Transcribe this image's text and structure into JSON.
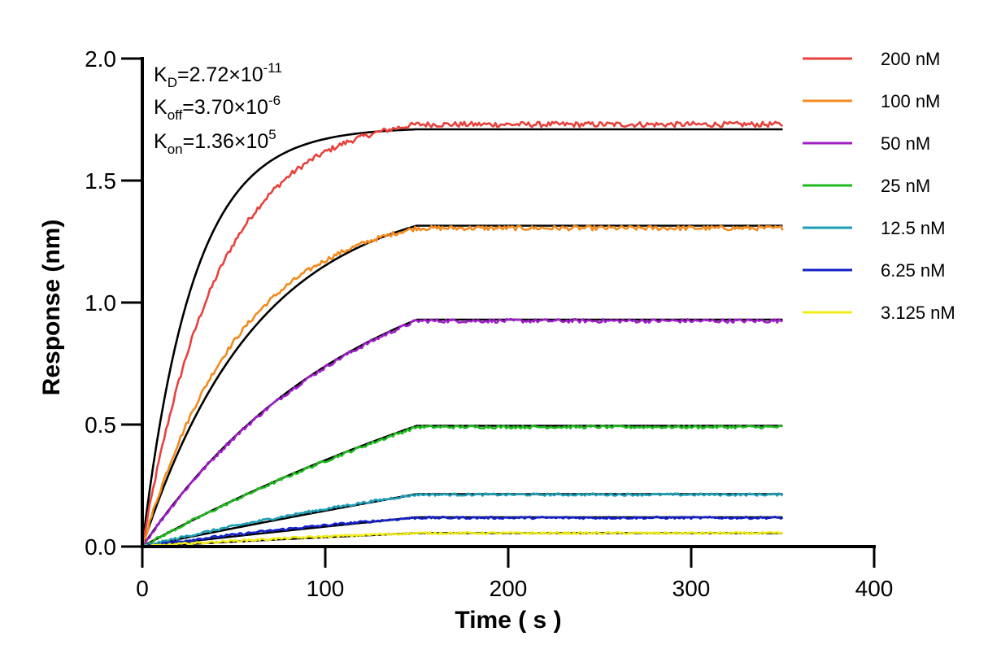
{
  "chart_data": {
    "type": "line",
    "xlabel": "Time ( s )",
    "ylabel": "Response (nm)",
    "xlim": [
      0,
      400
    ],
    "ylim": [
      0,
      2.0
    ],
    "x_ticks": [
      0,
      100,
      200,
      300,
      400
    ],
    "x_tick_labels": [
      "0",
      "100",
      "200",
      "300",
      "400"
    ],
    "y_ticks": [
      0,
      0.5,
      1.0,
      1.5,
      2.0
    ],
    "y_tick_labels": [
      "0.0",
      "0.5",
      "1.0",
      "1.5",
      "2.0"
    ],
    "grid": false,
    "legend_position": "right",
    "association_end": 150,
    "x_end": 350,
    "annotations": {
      "kd": {
        "symbol": "K",
        "sub": "D",
        "text": "=2.72×10",
        "exp": "-11"
      },
      "koff": {
        "symbol": "K",
        "sub": "off",
        "text": "=3.70×10",
        "exp": "-6"
      },
      "kon": {
        "symbol": "K",
        "sub": "on",
        "text": "=1.36×10",
        "exp": "5"
      }
    },
    "series": [
      {
        "name": "200 nM",
        "color": "#e8413c",
        "plateau": 1.73,
        "fit_plateau": 1.71,
        "k_data": 0.024,
        "k_fit": 0.036
      },
      {
        "name": "100 nM",
        "color": "#f28b1e",
        "plateau": 1.305,
        "fit_plateau": 1.315,
        "k_data": 0.0185,
        "k_fit": 0.0158
      },
      {
        "name": "50 nM",
        "color": "#a020c8",
        "plateau": 0.925,
        "fit_plateau": 0.93,
        "k_data": 0.0085,
        "k_fit": 0.0085
      },
      {
        "name": "25 nM",
        "color": "#1fb81f",
        "plateau": 0.49,
        "fit_plateau": 0.495,
        "k_data": 0.003,
        "k_fit": 0.003
      },
      {
        "name": "12.5 nM",
        "color": "#1e9eb4",
        "plateau": 0.213,
        "fit_plateau": 0.215,
        "k_data": 0.0035,
        "k_fit": 0.001
      },
      {
        "name": "6.25 nM",
        "color": "#1520c8",
        "plateau": 0.118,
        "fit_plateau": 0.12,
        "k_data": 0.0045,
        "k_fit": 0.0009
      },
      {
        "name": "3.125 nM",
        "color": "#f0ec1a",
        "plateau": 0.055,
        "fit_plateau": 0.055,
        "k_data": 0.005,
        "k_fit": 0.002
      }
    ]
  }
}
